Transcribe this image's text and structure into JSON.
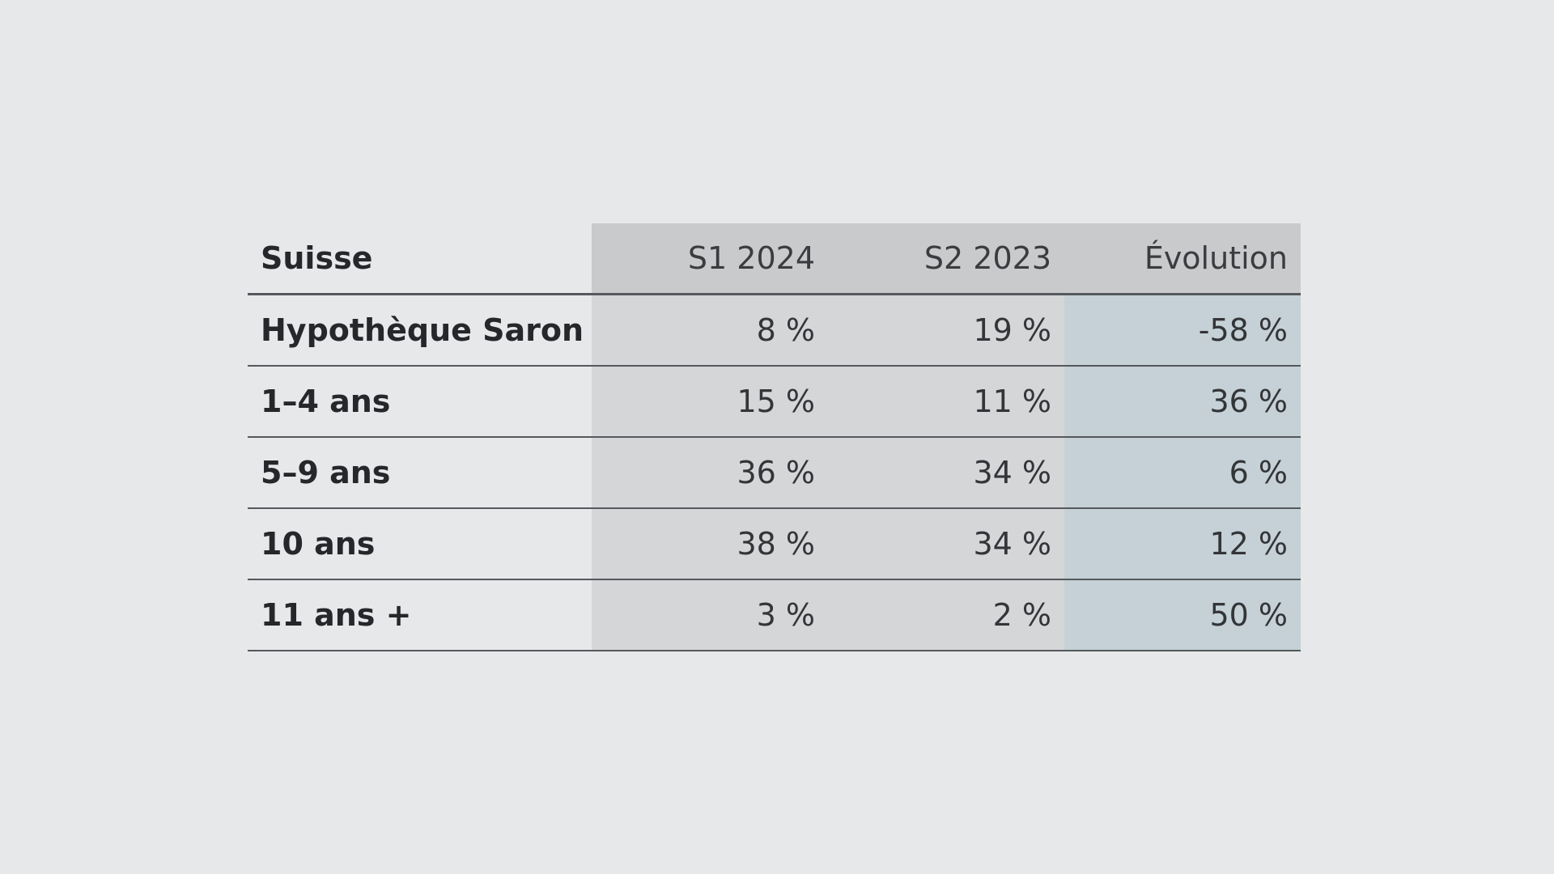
{
  "chart_data": {
    "type": "table",
    "columns": [
      "Suisse",
      "S1 2024",
      "S2 2023",
      "Évolution"
    ],
    "rows": [
      {
        "label": "Hypothèque Saron",
        "s1_2024": "8 %",
        "s2_2023": "19 %",
        "evolution": "-58 %"
      },
      {
        "label": "1–4 ans",
        "s1_2024": "15 %",
        "s2_2023": "11 %",
        "evolution": "36 %"
      },
      {
        "label": "5–9 ans",
        "s1_2024": "36 %",
        "s2_2023": "34 %",
        "evolution": "6 %"
      },
      {
        "label": "10 ans",
        "s1_2024": "38 %",
        "s2_2023": "34 %",
        "evolution": "12 %"
      },
      {
        "label": "11 ans +",
        "s1_2024": "3 %",
        "s2_2023": "2 %",
        "evolution": "50 %"
      }
    ]
  },
  "colors": {
    "background": "#e7e8ea",
    "header_shade": "#c9cacc",
    "period_shade": "#d5d6d8",
    "evolution_shade": "#c5d1d6",
    "rule": "#55585c"
  }
}
